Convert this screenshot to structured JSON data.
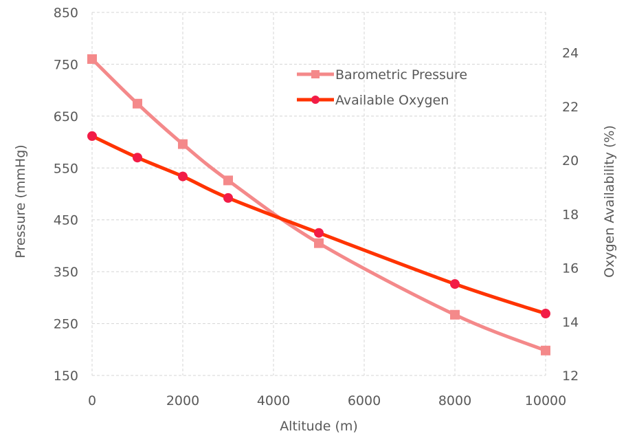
{
  "chart_data": {
    "type": "line",
    "xlabel": "Altitude (m)",
    "ylabel": "Pressure (mmHg)",
    "y2label": "Oxygen Availability (%)",
    "xlim": [
      0,
      10000
    ],
    "xticks": [
      0,
      2000,
      4000,
      6000,
      8000,
      10000
    ],
    "ylim": [
      150,
      850
    ],
    "yticks": [
      150,
      250,
      350,
      450,
      550,
      650,
      750,
      850
    ],
    "y2lim": [
      12,
      25.5
    ],
    "y2ticks": [
      12,
      14,
      16,
      18,
      20,
      22,
      24
    ],
    "grid": true,
    "legend_position": "top-center",
    "series": [
      {
        "name": "Barometric Pressure",
        "axis": "left",
        "marker": "square",
        "color": "#f4898a",
        "x": [
          0,
          1000,
          2000,
          3000,
          5000,
          8000,
          10000
        ],
        "values": [
          760,
          674,
          596,
          526,
          405,
          267,
          198
        ]
      },
      {
        "name": "Available Oxygen",
        "axis": "right",
        "marker": "circle",
        "color": "#ff3300",
        "marker_color": "#f21c46",
        "x": [
          0,
          1000,
          2000,
          3000,
          5000,
          8000,
          10000
        ],
        "values": [
          20.9,
          20.1,
          19.4,
          18.6,
          17.3,
          15.4,
          14.3
        ]
      }
    ]
  }
}
